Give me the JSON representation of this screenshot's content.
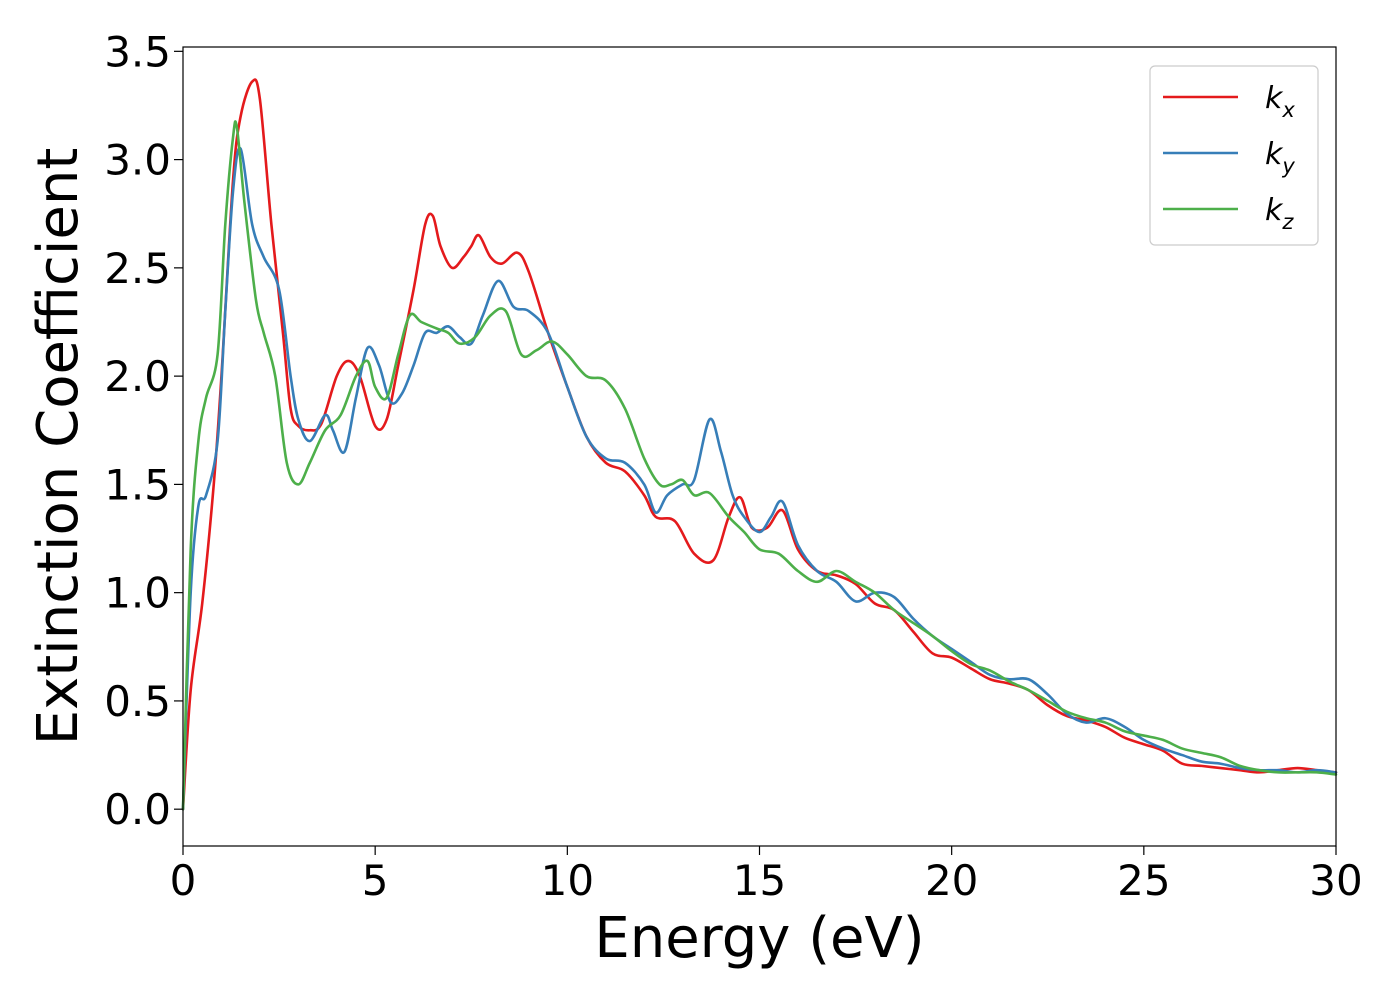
{
  "chart_data": {
    "type": "line",
    "xlabel": "Energy (eV)",
    "ylabel": "Extinction Coefficient",
    "xlim": [
      0,
      30
    ],
    "ylim": [
      -0.17,
      3.52
    ],
    "xticks": [
      "0",
      "5",
      "10",
      "15",
      "20",
      "25",
      "30"
    ],
    "yticks": [
      "0.0",
      "0.5",
      "1.0",
      "1.5",
      "2.0",
      "2.5",
      "3.0",
      "3.5"
    ],
    "grid": false,
    "legend_position": "top-right",
    "series": [
      {
        "name": "k",
        "subscript": "x",
        "color": "#e41a1c",
        "x": [
          0,
          0.2,
          0.5,
          0.8,
          1.0,
          1.3,
          1.5,
          1.8,
          2.0,
          2.3,
          2.6,
          2.8,
          3.0,
          3.3,
          3.6,
          4.0,
          4.3,
          4.6,
          5.0,
          5.3,
          5.6,
          6.0,
          6.3,
          6.5,
          6.7,
          7.0,
          7.3,
          7.5,
          7.7,
          8.0,
          8.3,
          8.7,
          9.0,
          9.5,
          10.0,
          10.5,
          11.0,
          11.5,
          12.0,
          12.3,
          12.8,
          13.3,
          13.8,
          14.2,
          14.5,
          14.8,
          15.2,
          15.6,
          16.0,
          16.5,
          17.0,
          17.5,
          18.0,
          18.5,
          19.0,
          19.5,
          20.0,
          20.5,
          21.0,
          21.5,
          22.0,
          22.5,
          23.0,
          23.5,
          24.0,
          24.5,
          25.0,
          25.5,
          26.0,
          26.5,
          27.0,
          27.5,
          28.0,
          28.5,
          29.0,
          29.5,
          30.0
        ],
        "y": [
          0.0,
          0.55,
          0.95,
          1.5,
          2.0,
          2.9,
          3.2,
          3.36,
          3.28,
          2.7,
          2.2,
          1.85,
          1.77,
          1.75,
          1.78,
          2.0,
          2.07,
          2.0,
          1.77,
          1.8,
          2.05,
          2.4,
          2.7,
          2.74,
          2.6,
          2.5,
          2.55,
          2.6,
          2.65,
          2.55,
          2.52,
          2.57,
          2.48,
          2.2,
          1.95,
          1.72,
          1.6,
          1.56,
          1.45,
          1.35,
          1.33,
          1.18,
          1.15,
          1.35,
          1.44,
          1.3,
          1.3,
          1.38,
          1.2,
          1.1,
          1.08,
          1.04,
          0.95,
          0.92,
          0.82,
          0.72,
          0.7,
          0.65,
          0.6,
          0.58,
          0.55,
          0.48,
          0.43,
          0.41,
          0.38,
          0.33,
          0.3,
          0.27,
          0.21,
          0.2,
          0.19,
          0.18,
          0.17,
          0.18,
          0.19,
          0.18,
          0.17
        ]
      },
      {
        "name": "k",
        "subscript": "y",
        "color": "#377eb8",
        "x": [
          0,
          0.2,
          0.4,
          0.6,
          0.9,
          1.1,
          1.3,
          1.5,
          1.8,
          2.1,
          2.5,
          2.8,
          3.0,
          3.3,
          3.7,
          3.9,
          4.2,
          4.5,
          4.8,
          5.1,
          5.4,
          5.7,
          6.0,
          6.3,
          6.6,
          6.9,
          7.2,
          7.5,
          7.8,
          8.2,
          8.6,
          9.0,
          9.5,
          10.0,
          10.5,
          11.0,
          11.5,
          12.0,
          12.3,
          12.6,
          13.0,
          13.3,
          13.7,
          14.0,
          14.3,
          14.6,
          15.0,
          15.3,
          15.6,
          16.0,
          16.5,
          17.0,
          17.5,
          18.0,
          18.5,
          19.0,
          19.5,
          20.0,
          20.5,
          21.0,
          21.5,
          22.0,
          22.5,
          23.0,
          23.5,
          24.0,
          24.5,
          25.0,
          25.5,
          26.0,
          26.5,
          27.0,
          27.5,
          28.0,
          28.5,
          29.0,
          29.5,
          30.0
        ],
        "y": [
          0.0,
          1.0,
          1.4,
          1.45,
          1.7,
          2.3,
          2.85,
          3.05,
          2.7,
          2.55,
          2.4,
          2.0,
          1.8,
          1.7,
          1.82,
          1.75,
          1.65,
          1.9,
          2.13,
          2.05,
          1.88,
          1.92,
          2.05,
          2.2,
          2.2,
          2.23,
          2.18,
          2.15,
          2.28,
          2.44,
          2.32,
          2.3,
          2.2,
          1.95,
          1.72,
          1.62,
          1.6,
          1.5,
          1.37,
          1.45,
          1.5,
          1.52,
          1.8,
          1.65,
          1.45,
          1.35,
          1.28,
          1.35,
          1.42,
          1.22,
          1.1,
          1.05,
          0.96,
          1.0,
          0.98,
          0.88,
          0.8,
          0.74,
          0.68,
          0.62,
          0.6,
          0.6,
          0.53,
          0.44,
          0.4,
          0.42,
          0.38,
          0.32,
          0.28,
          0.25,
          0.22,
          0.21,
          0.19,
          0.18,
          0.18,
          0.17,
          0.18,
          0.17
        ]
      },
      {
        "name": "k",
        "subscript": "z",
        "color": "#4daf4a",
        "x": [
          0,
          0.2,
          0.4,
          0.6,
          0.9,
          1.1,
          1.3,
          1.4,
          1.6,
          1.9,
          2.1,
          2.4,
          2.7,
          3.0,
          3.3,
          3.7,
          4.1,
          4.5,
          4.8,
          5.0,
          5.3,
          5.6,
          5.9,
          6.2,
          6.6,
          6.9,
          7.2,
          7.6,
          8.0,
          8.4,
          8.8,
          9.2,
          9.6,
          10.0,
          10.5,
          11.0,
          11.5,
          12.0,
          12.4,
          12.7,
          13.0,
          13.3,
          13.7,
          14.2,
          14.6,
          15.0,
          15.5,
          16.0,
          16.5,
          17.0,
          17.5,
          18.0,
          18.5,
          19.0,
          19.5,
          20.0,
          20.5,
          21.0,
          21.5,
          22.0,
          22.5,
          23.0,
          23.5,
          24.0,
          24.5,
          25.0,
          25.5,
          26.0,
          26.5,
          27.0,
          27.5,
          28.0,
          28.5,
          29.0,
          29.5,
          30.0
        ],
        "y": [
          0.0,
          1.2,
          1.7,
          1.9,
          2.1,
          2.7,
          3.1,
          3.15,
          2.8,
          2.35,
          2.2,
          2.0,
          1.6,
          1.5,
          1.6,
          1.75,
          1.82,
          2.0,
          2.07,
          1.95,
          1.9,
          2.1,
          2.28,
          2.25,
          2.22,
          2.2,
          2.15,
          2.18,
          2.28,
          2.3,
          2.1,
          2.12,
          2.16,
          2.1,
          2.0,
          1.98,
          1.85,
          1.62,
          1.5,
          1.5,
          1.52,
          1.45,
          1.46,
          1.35,
          1.28,
          1.2,
          1.18,
          1.1,
          1.05,
          1.1,
          1.05,
          1.0,
          0.92,
          0.86,
          0.8,
          0.73,
          0.67,
          0.64,
          0.59,
          0.55,
          0.5,
          0.45,
          0.42,
          0.4,
          0.36,
          0.34,
          0.32,
          0.28,
          0.26,
          0.24,
          0.2,
          0.18,
          0.17,
          0.17,
          0.17,
          0.16
        ]
      }
    ]
  }
}
